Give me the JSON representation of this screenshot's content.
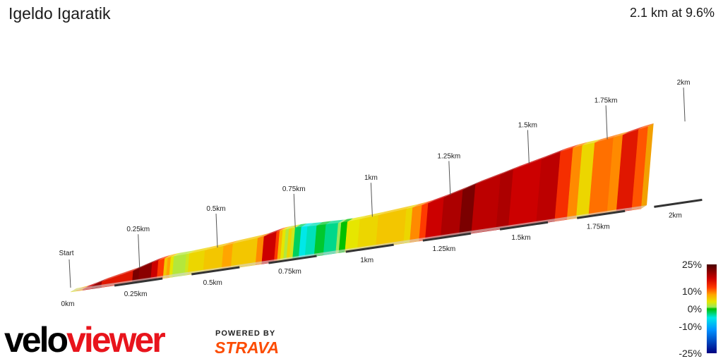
{
  "header": {
    "title": "Igeldo Igaratik",
    "summary": "2.1 km at 9.6%"
  },
  "chart_data": {
    "type": "area",
    "xlabel": "",
    "ylabel": "",
    "distance_km_range": [
      0,
      2.1
    ],
    "start_label": "Start",
    "bottom_axis_ticks": [
      "0km",
      "0.25km",
      "0.5km",
      "0.75km",
      "1km",
      "1.25km",
      "1.5km",
      "1.75km",
      "2km"
    ],
    "profile_markers": [
      "0.25km",
      "0.5km",
      "0.75km",
      "1km",
      "1.25km",
      "1.5km",
      "1.75km",
      "2km"
    ],
    "gradient_scale": [
      {
        "stop": 25,
        "color": "#4a0000"
      },
      {
        "stop": 17,
        "color": "#cc0000"
      },
      {
        "stop": 12,
        "color": "#ff3a00"
      },
      {
        "stop": 8,
        "color": "#ffa500"
      },
      {
        "stop": 4,
        "color": "#e6e600"
      },
      {
        "stop": 1,
        "color": "#9be85a"
      },
      {
        "stop": 0,
        "color": "#00c000"
      },
      {
        "stop": -5,
        "color": "#00e8e8"
      },
      {
        "stop": -12,
        "color": "#0090ff"
      },
      {
        "stop": -25,
        "color": "#000080"
      }
    ],
    "legend_labels": [
      "25%",
      "10%",
      "0%",
      "-10%",
      "-25%"
    ],
    "segments": [
      {
        "x0": 0,
        "x1": 0.02,
        "grad": 4
      },
      {
        "x0": 0.02,
        "x1": 0.04,
        "grad": 8
      },
      {
        "x0": 0.04,
        "x1": 0.07,
        "grad": 17
      },
      {
        "x0": 0.07,
        "x1": 0.1,
        "grad": 20
      },
      {
        "x0": 0.1,
        "x1": 0.16,
        "grad": 15
      },
      {
        "x0": 0.16,
        "x1": 0.2,
        "grad": 15
      },
      {
        "x0": 0.2,
        "x1": 0.22,
        "grad": 22
      },
      {
        "x0": 0.22,
        "x1": 0.26,
        "grad": 21
      },
      {
        "x0": 0.26,
        "x1": 0.28,
        "grad": 17
      },
      {
        "x0": 0.28,
        "x1": 0.3,
        "grad": 12
      },
      {
        "x0": 0.3,
        "x1": 0.31,
        "grad": 6
      },
      {
        "x0": 0.31,
        "x1": 0.32,
        "grad": 8
      },
      {
        "x0": 0.32,
        "x1": 0.33,
        "grad": 4
      },
      {
        "x0": 0.33,
        "x1": 0.37,
        "grad": 2
      },
      {
        "x0": 0.37,
        "x1": 0.38,
        "grad": 3
      },
      {
        "x0": 0.38,
        "x1": 0.43,
        "grad": 5
      },
      {
        "x0": 0.43,
        "x1": 0.49,
        "grad": 6
      },
      {
        "x0": 0.49,
        "x1": 0.52,
        "grad": 8
      },
      {
        "x0": 0.52,
        "x1": 0.6,
        "grad": 6
      },
      {
        "x0": 0.6,
        "x1": 0.62,
        "grad": 9
      },
      {
        "x0": 0.62,
        "x1": 0.66,
        "grad": 17
      },
      {
        "x0": 0.66,
        "x1": 0.67,
        "grad": 12
      },
      {
        "x0": 0.67,
        "x1": 0.68,
        "grad": 7
      },
      {
        "x0": 0.68,
        "x1": 0.69,
        "grad": 4
      },
      {
        "x0": 0.69,
        "x1": 0.7,
        "grad": 2
      },
      {
        "x0": 0.7,
        "x1": 0.71,
        "grad": 5
      },
      {
        "x0": 0.71,
        "x1": 0.72,
        "grad": 3
      },
      {
        "x0": 0.72,
        "x1": 0.74,
        "grad": -2
      },
      {
        "x0": 0.74,
        "x1": 0.76,
        "grad": -5
      },
      {
        "x0": 0.76,
        "x1": 0.79,
        "grad": -4
      },
      {
        "x0": 0.79,
        "x1": 0.82,
        "grad": -1
      },
      {
        "x0": 0.82,
        "x1": 0.86,
        "grad": -3
      },
      {
        "x0": 0.86,
        "x1": 0.87,
        "grad": 1
      },
      {
        "x0": 0.87,
        "x1": 0.89,
        "grad": 0
      },
      {
        "x0": 0.89,
        "x1": 0.9,
        "grad": 4
      },
      {
        "x0": 0.9,
        "x1": 0.93,
        "grad": 4
      },
      {
        "x0": 0.93,
        "x1": 0.99,
        "grad": 5
      },
      {
        "x0": 0.99,
        "x1": 1.08,
        "grad": 6
      },
      {
        "x0": 1.08,
        "x1": 1.1,
        "grad": 5
      },
      {
        "x0": 1.1,
        "x1": 1.13,
        "grad": 9
      },
      {
        "x0": 1.13,
        "x1": 1.15,
        "grad": 12
      },
      {
        "x0": 1.15,
        "x1": 1.2,
        "grad": 17
      },
      {
        "x0": 1.2,
        "x1": 1.26,
        "grad": 19
      },
      {
        "x0": 1.26,
        "x1": 1.3,
        "grad": 22
      },
      {
        "x0": 1.3,
        "x1": 1.38,
        "grad": 18
      },
      {
        "x0": 1.38,
        "x1": 1.42,
        "grad": 19
      },
      {
        "x0": 1.42,
        "x1": 1.51,
        "grad": 17
      },
      {
        "x0": 1.51,
        "x1": 1.57,
        "grad": 18
      },
      {
        "x0": 1.57,
        "x1": 1.61,
        "grad": 13
      },
      {
        "x0": 1.61,
        "x1": 1.64,
        "grad": 9
      },
      {
        "x0": 1.64,
        "x1": 1.68,
        "grad": 5
      },
      {
        "x0": 1.68,
        "x1": 1.74,
        "grad": 10
      },
      {
        "x0": 1.74,
        "x1": 1.77,
        "grad": 9
      },
      {
        "x0": 1.77,
        "x1": 1.82,
        "grad": 15
      },
      {
        "x0": 1.82,
        "x1": 1.85,
        "grad": 11
      }
    ]
  },
  "branding": {
    "logo_velo": "velo",
    "logo_viewer": "viewer",
    "powered_by": "POWERED BY",
    "strava": "STRAVA"
  }
}
